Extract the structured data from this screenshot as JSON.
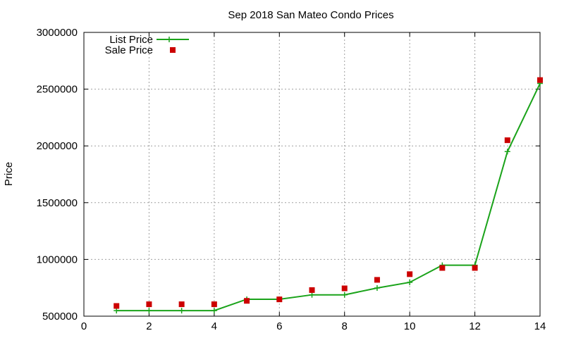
{
  "chart_data": {
    "type": "line",
    "title": "Sep 2018 San Mateo Condo Prices",
    "xlabel": "",
    "ylabel": "Price",
    "xlim": [
      0,
      14
    ],
    "ylim": [
      500000,
      3000000
    ],
    "xticks": [
      0,
      2,
      4,
      6,
      8,
      10,
      12,
      14
    ],
    "yticks": [
      500000,
      1000000,
      1500000,
      2000000,
      2500000,
      3000000
    ],
    "grid": true,
    "legend_position": "top-left",
    "series": [
      {
        "name": "List Price",
        "style": "line-with-plus-markers",
        "color": "#1aa31a",
        "x": [
          1,
          2,
          3,
          4,
          5,
          6,
          7,
          8,
          9,
          10,
          11,
          12,
          13,
          14
        ],
        "values": [
          549000,
          549000,
          549000,
          549000,
          649000,
          649000,
          688000,
          688000,
          748000,
          798000,
          949000,
          949000,
          1950000,
          2550000
        ]
      },
      {
        "name": "Sale Price",
        "style": "square-markers",
        "color": "#cc0000",
        "x": [
          1,
          2,
          3,
          4,
          5,
          6,
          7,
          8,
          9,
          10,
          11,
          12,
          13,
          14
        ],
        "values": [
          590000,
          605000,
          605000,
          605000,
          635000,
          648000,
          730000,
          745000,
          820000,
          870000,
          925000,
          925000,
          2050000,
          2580000
        ]
      }
    ]
  }
}
